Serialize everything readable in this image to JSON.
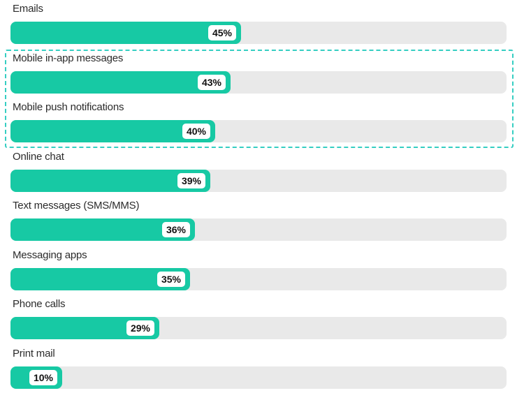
{
  "chart_data": {
    "type": "bar",
    "orientation": "horizontal",
    "title": "",
    "xlabel": "",
    "ylabel": "",
    "xlim": [
      0,
      100
    ],
    "grid": false,
    "legend": false,
    "categories": [
      "Emails",
      "Mobile in-app messages",
      "Mobile push notifications",
      "Online chat",
      "Text messages (SMS/MMS)",
      "Messaging apps",
      "Phone calls",
      "Print mail"
    ],
    "values": [
      45,
      43,
      40,
      39,
      36,
      35,
      29,
      10
    ],
    "display_values": [
      "45%",
      "43%",
      "40%",
      "39%",
      "36%",
      "35%",
      "29%",
      "10%"
    ],
    "value_suffix": "%",
    "bar_color": "#17c9a4",
    "track_color": "#e9e9e9",
    "value_label_bg": "#ffffff",
    "value_label_color": "#111111",
    "category_label_color": "#2b2b2b",
    "highlight": {
      "style": "dashed-outline",
      "color": "#35cec2",
      "highlighted_categories": [
        "Mobile in-app messages",
        "Mobile push notifications"
      ],
      "highlighted_indices": [
        1,
        2
      ]
    }
  }
}
